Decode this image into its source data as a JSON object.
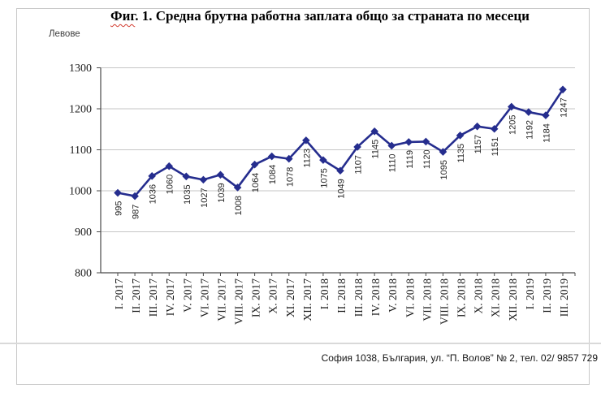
{
  "page": {
    "title_word": "Фиг",
    "title_rest": ". 1. Средна брутна работна заплата общо за страната по месеци",
    "units_label": "Левове",
    "footer_text": "София 1038, България, ул. “П. Волов” № 2, тел. 02/ 9857 729"
  },
  "chart_data": {
    "type": "line",
    "title": "Фиг. 1. Средна брутна работна заплата общо за страната по месеци",
    "ylabel": "Левове",
    "xlabel": "",
    "categories": [
      "I. 2017",
      "II. 2017",
      "III. 2017",
      "IV. 2017",
      "V. 2017",
      "VI. 2017",
      "VII. 2017",
      "VIII. 2017",
      "IX. 2017",
      "X. 2017",
      "XI. 2017",
      "XII. 2017",
      "I. 2018",
      "II. 2018",
      "III. 2018",
      "IV. 2018",
      "V. 2018",
      "VI. 2018",
      "VII. 2018",
      "VIII. 2018",
      "IX. 2018",
      "X. 2018",
      "XI. 2018",
      "XII. 2018",
      "I. 2019",
      "II. 2019",
      "III. 2019"
    ],
    "values": [
      995,
      987,
      1036,
      1060,
      1035,
      1027,
      1039,
      1008,
      1064,
      1084,
      1078,
      1123,
      1075,
      1049,
      1107,
      1145,
      1110,
      1119,
      1120,
      1095,
      1135,
      1157,
      1151,
      1205,
      1192,
      1184,
      1247
    ],
    "ylim": [
      800,
      1300
    ],
    "y_ticks": [
      800,
      900,
      1000,
      1100,
      1200,
      1300
    ],
    "grid": true,
    "legend": "none",
    "marker": "diamond",
    "data_labels": "rotated 90°, below points",
    "x_labels_rotation": 90,
    "colors": {
      "series_line": "#252d8e",
      "gridline": "#c6c6c6",
      "axis": "#4a4a4a",
      "tick_label": "#1a1a1a",
      "data_label": "#262626",
      "frame_border": "#c8c8c8",
      "divider": "#d9d9d9",
      "squiggle": "#d23a2e"
    }
  }
}
